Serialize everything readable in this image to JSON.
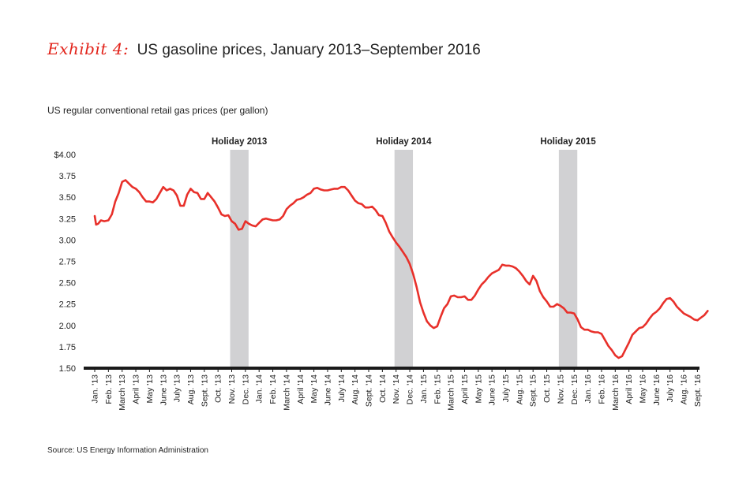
{
  "header": {
    "exhibit": "Exhibit 4:",
    "title": "US gasoline prices, January 2013–September 2016"
  },
  "subtitle": "US regular conventional retail gas prices (per gallon)",
  "source": "Source: US Energy Information Administration",
  "colors": {
    "line": "#e8302a",
    "holiday_band": "#d1d1d3",
    "axis": "#1a1a1a",
    "exhibit": "#e2231a"
  },
  "chart_data": {
    "type": "line",
    "title": "US gasoline prices, January 2013–September 2016",
    "ylabel": "US regular conventional retail gas prices (per gallon)",
    "xlabel": "",
    "ylim": [
      1.5,
      4.0
    ],
    "y_ticks": [
      "$4.00",
      "3.75",
      "3.50",
      "3.25",
      "3.00",
      "2.75",
      "2.50",
      "2.25",
      "2.00",
      "1.75",
      "1.50"
    ],
    "y_tick_values": [
      4.0,
      3.75,
      3.5,
      3.25,
      3.0,
      2.75,
      2.5,
      2.25,
      2.0,
      1.75,
      1.5
    ],
    "x_ticks": [
      "Jan. '13",
      "Feb. '13",
      "March '13",
      "April '13",
      "May '13",
      "June '13",
      "July '13",
      "Aug. '13",
      "Sept. '13",
      "Oct. '13",
      "Nov. '13",
      "Dec. '13",
      "Jan. '14",
      "Feb. '14",
      "March '14",
      "April '14",
      "May '14",
      "June '14",
      "July '14",
      "Aug. '14",
      "Sept. '14",
      "Oct. '14",
      "Nov. '14",
      "Dec. '14",
      "Jan. '15",
      "Feb. '15",
      "March '15",
      "April '15",
      "May '15",
      "June '15",
      "July '15",
      "Aug. '15",
      "Sept. '15",
      "Oct. '15",
      "Nov. '15",
      "Dec. '15",
      "Jan. '16",
      "Feb. '16",
      "March '16",
      "April '16",
      "May '16",
      "June '16",
      "July '16",
      "Aug. '16",
      "Sept. '16"
    ],
    "legend": "none",
    "grid": false,
    "holidays": [
      {
        "label": "Holiday 2013",
        "start_month": 10,
        "end_month": 11
      },
      {
        "label": "Holiday 2014",
        "start_month": 22,
        "end_month": 23
      },
      {
        "label": "Holiday 2015",
        "start_month": 34,
        "end_month": 35
      }
    ],
    "series": [
      {
        "x_month_index": [
          0,
          0.1,
          0.25,
          0.45,
          0.7,
          1.0,
          1.25,
          1.5,
          1.75,
          2.0,
          2.25,
          2.5,
          2.75,
          3.0,
          3.25,
          3.5,
          3.75,
          4.0,
          4.25,
          4.5,
          4.75,
          5.0,
          5.25,
          5.5,
          5.75,
          6.0,
          6.25,
          6.5,
          6.75,
          7.0,
          7.25,
          7.5,
          7.75,
          8.0,
          8.25,
          8.5,
          8.75,
          9.0,
          9.25,
          9.5,
          9.75,
          10.0,
          10.25,
          10.5,
          10.75,
          11.0,
          11.25,
          11.5,
          11.75,
          12.0,
          12.25,
          12.5,
          12.75,
          13.0,
          13.25,
          13.5,
          13.75,
          14.0,
          14.25,
          14.5,
          14.75,
          15.0,
          15.25,
          15.5,
          15.75,
          16.0,
          16.25,
          16.5,
          16.75,
          17.0,
          17.25,
          17.5,
          17.75,
          18.0,
          18.25,
          18.5,
          18.75,
          19.0,
          19.25,
          19.5,
          19.75,
          20.0,
          20.25,
          20.5,
          20.75,
          21.0,
          21.25,
          21.5,
          21.75,
          22.0,
          22.25,
          22.5,
          22.75,
          23.0,
          23.25,
          23.5,
          23.75,
          24.0,
          24.25,
          24.5,
          24.75,
          25.0,
          25.25,
          25.5,
          25.75,
          26.0,
          26.25,
          26.5,
          26.75,
          27.0,
          27.25,
          27.5,
          27.75,
          28.0,
          28.25,
          28.5,
          28.75,
          29.0,
          29.25,
          29.5,
          29.75,
          30.0,
          30.25,
          30.5,
          30.75,
          31.0,
          31.25,
          31.5,
          31.75,
          32.0,
          32.25,
          32.5,
          32.75,
          33.0,
          33.25,
          33.5,
          33.75,
          34.0,
          34.25,
          34.5,
          34.75,
          35.0,
          35.25,
          35.5,
          35.75,
          36.0,
          36.25,
          36.5,
          36.75,
          37.0,
          37.25,
          37.5,
          37.75,
          38.0,
          38.25,
          38.5,
          38.75,
          39.0,
          39.25,
          39.5,
          39.75,
          40.0,
          40.25,
          40.5,
          40.75,
          41.0,
          41.25,
          41.5,
          41.75,
          42.0,
          42.25,
          42.5,
          42.75,
          43.0,
          43.25,
          43.5,
          43.75,
          44.0,
          44.25,
          44.5,
          44.75
        ],
        "values": [
          3.28,
          3.18,
          3.19,
          3.23,
          3.22,
          3.23,
          3.3,
          3.45,
          3.55,
          3.68,
          3.7,
          3.66,
          3.62,
          3.6,
          3.56,
          3.5,
          3.45,
          3.45,
          3.44,
          3.48,
          3.55,
          3.62,
          3.58,
          3.6,
          3.58,
          3.52,
          3.4,
          3.4,
          3.53,
          3.6,
          3.56,
          3.55,
          3.48,
          3.48,
          3.55,
          3.5,
          3.45,
          3.38,
          3.3,
          3.28,
          3.29,
          3.22,
          3.19,
          3.12,
          3.13,
          3.22,
          3.19,
          3.17,
          3.16,
          3.2,
          3.24,
          3.25,
          3.24,
          3.23,
          3.23,
          3.24,
          3.28,
          3.36,
          3.4,
          3.43,
          3.47,
          3.48,
          3.5,
          3.53,
          3.55,
          3.6,
          3.61,
          3.59,
          3.58,
          3.58,
          3.59,
          3.6,
          3.6,
          3.62,
          3.62,
          3.58,
          3.52,
          3.46,
          3.43,
          3.42,
          3.38,
          3.38,
          3.39,
          3.35,
          3.29,
          3.28,
          3.2,
          3.1,
          3.03,
          2.97,
          2.92,
          2.86,
          2.8,
          2.72,
          2.6,
          2.45,
          2.27,
          2.15,
          2.05,
          2.0,
          1.97,
          1.99,
          2.1,
          2.2,
          2.25,
          2.34,
          2.35,
          2.33,
          2.33,
          2.34,
          2.3,
          2.3,
          2.35,
          2.42,
          2.48,
          2.52,
          2.57,
          2.61,
          2.63,
          2.65,
          2.71,
          2.7,
          2.7,
          2.69,
          2.67,
          2.63,
          2.58,
          2.52,
          2.48,
          2.58,
          2.52,
          2.4,
          2.33,
          2.28,
          2.22,
          2.22,
          2.25,
          2.23,
          2.2,
          2.15,
          2.15,
          2.14,
          2.07,
          1.98,
          1.95,
          1.95,
          1.93,
          1.92,
          1.92,
          1.9,
          1.83,
          1.76,
          1.71,
          1.65,
          1.62,
          1.64,
          1.72,
          1.8,
          1.89,
          1.93,
          1.97,
          1.98,
          2.02,
          2.08,
          2.13,
          2.16,
          2.2,
          2.26,
          2.31,
          2.32,
          2.28,
          2.22,
          2.18,
          2.14,
          2.12,
          2.1,
          2.07,
          2.06,
          2.09,
          2.12,
          2.17,
          2.13,
          2.15,
          2.16,
          2.16
        ]
      }
    ]
  }
}
